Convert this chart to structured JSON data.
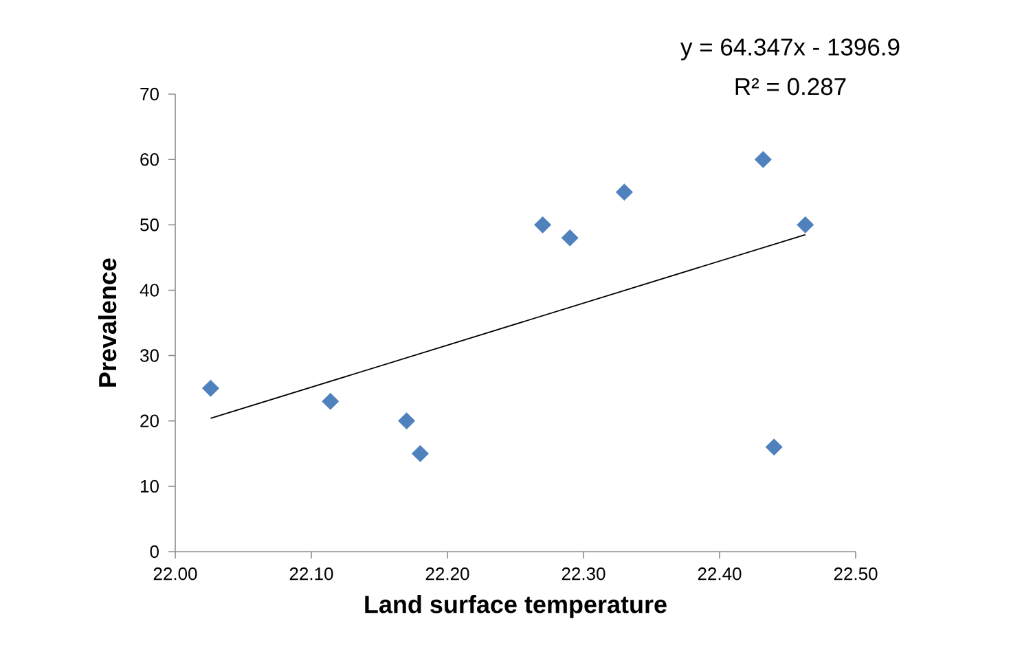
{
  "chart_data": {
    "type": "scatter",
    "xlabel": "Land surface temperature",
    "ylabel": "Prevalence",
    "annotations": [
      "y = 64.347x - 1396.9",
      "R² = 0.287"
    ],
    "marker": "diamond",
    "grid": false,
    "xlim": [
      22.0,
      22.5
    ],
    "ylim": [
      0,
      70
    ],
    "xticks": [
      {
        "value": 22.0,
        "label": "22.00"
      },
      {
        "value": 22.1,
        "label": "22.10"
      },
      {
        "value": 22.2,
        "label": "22.20"
      },
      {
        "value": 22.3,
        "label": "22.30"
      },
      {
        "value": 22.4,
        "label": "22.40"
      },
      {
        "value": 22.5,
        "label": "22.50"
      }
    ],
    "yticks": [
      0,
      10,
      20,
      30,
      40,
      50,
      60,
      70
    ],
    "series": [
      {
        "color": "#4f81bd",
        "x": [
          22.026,
          22.114,
          22.17,
          22.18,
          22.27,
          22.29,
          22.33,
          22.432,
          22.44,
          22.463
        ],
        "values": [
          25,
          23,
          20,
          15,
          50,
          48,
          55,
          60,
          16,
          50
        ]
      },
      {
        "type": "line",
        "color": "#000000",
        "marker": "none",
        "line_style": "solid",
        "x": [
          22.026,
          22.463
        ],
        "values": [
          20.4,
          48.5
        ]
      }
    ]
  }
}
